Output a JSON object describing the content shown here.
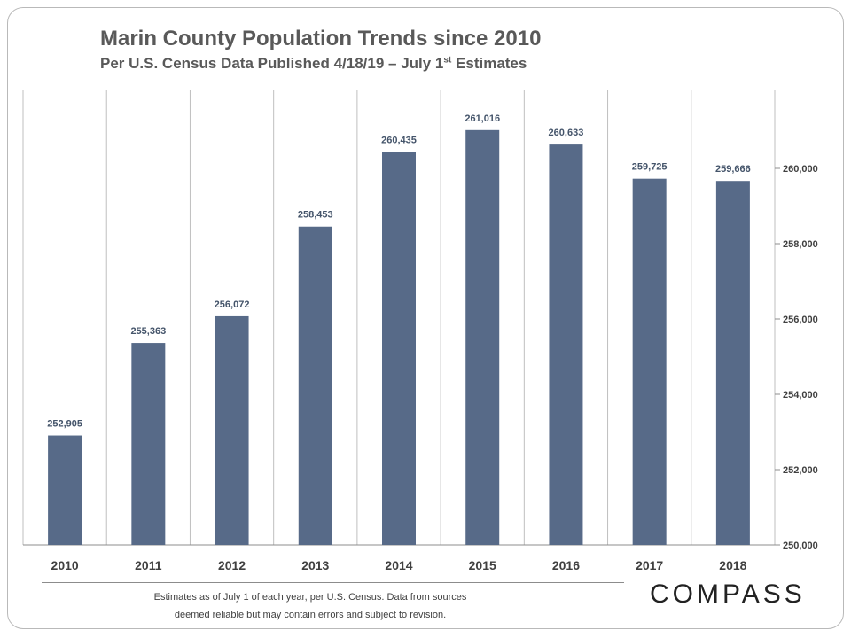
{
  "header": {
    "title": "Marin County Population Trends since 2010",
    "subtitle_main": "Per U.S. Census  Data Published  4/18/19 – July 1",
    "subtitle_sup": "st",
    "subtitle_end": " Estimates"
  },
  "footer": {
    "line1": "Estimates as of July 1 of each year, per U.S. Census. Data from sources",
    "line2": "deemed reliable but may contain  errors and subject to revision.",
    "logo": "COMPASS"
  },
  "colors": {
    "bar": "#576a88",
    "label": "#44546a",
    "grid": "#bfbfbf",
    "text": "#404040"
  },
  "chart_data": {
    "type": "bar",
    "title": "Marin County Population Trends since 2010",
    "xlabel": "",
    "ylabel": "",
    "categories": [
      "2010",
      "2011",
      "2012",
      "2013",
      "2014",
      "2015",
      "2016",
      "2017",
      "2018"
    ],
    "values": [
      252905,
      255363,
      256072,
      258453,
      260435,
      261016,
      260633,
      259725,
      259666
    ],
    "value_labels": [
      "252,905",
      "255,363",
      "256,072",
      "258,453",
      "260,435",
      "261,016",
      "260,633",
      "259,725",
      "259,666"
    ],
    "ylim": [
      250000,
      262000
    ],
    "yticks": [
      250000,
      252000,
      254000,
      256000,
      258000,
      260000
    ],
    "ytick_labels": [
      "250,000",
      "252,000",
      "254,000",
      "256,000",
      "258,000",
      "260,000"
    ],
    "y_axis_side": "right",
    "grid": "vertical category separators"
  }
}
